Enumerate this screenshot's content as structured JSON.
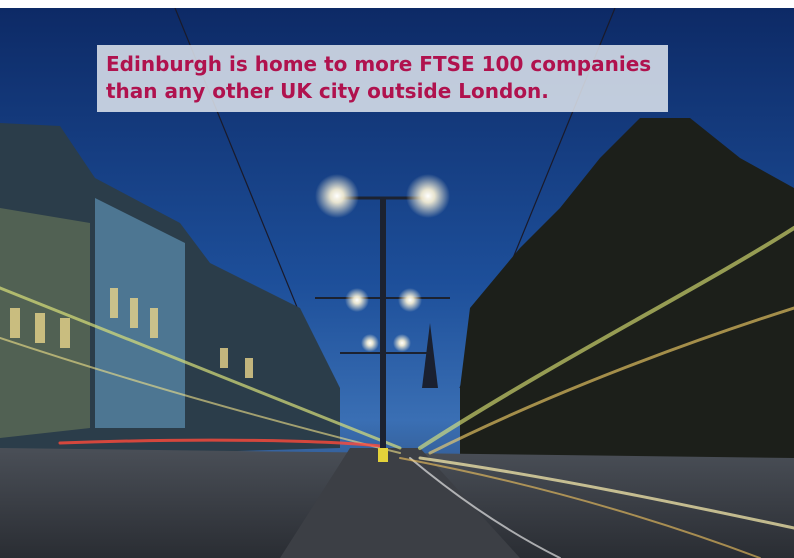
{
  "caption": {
    "lines": [
      "Edinburgh is home to more FTSE 100 companies",
      "than any other UK city outside London."
    ]
  }
}
